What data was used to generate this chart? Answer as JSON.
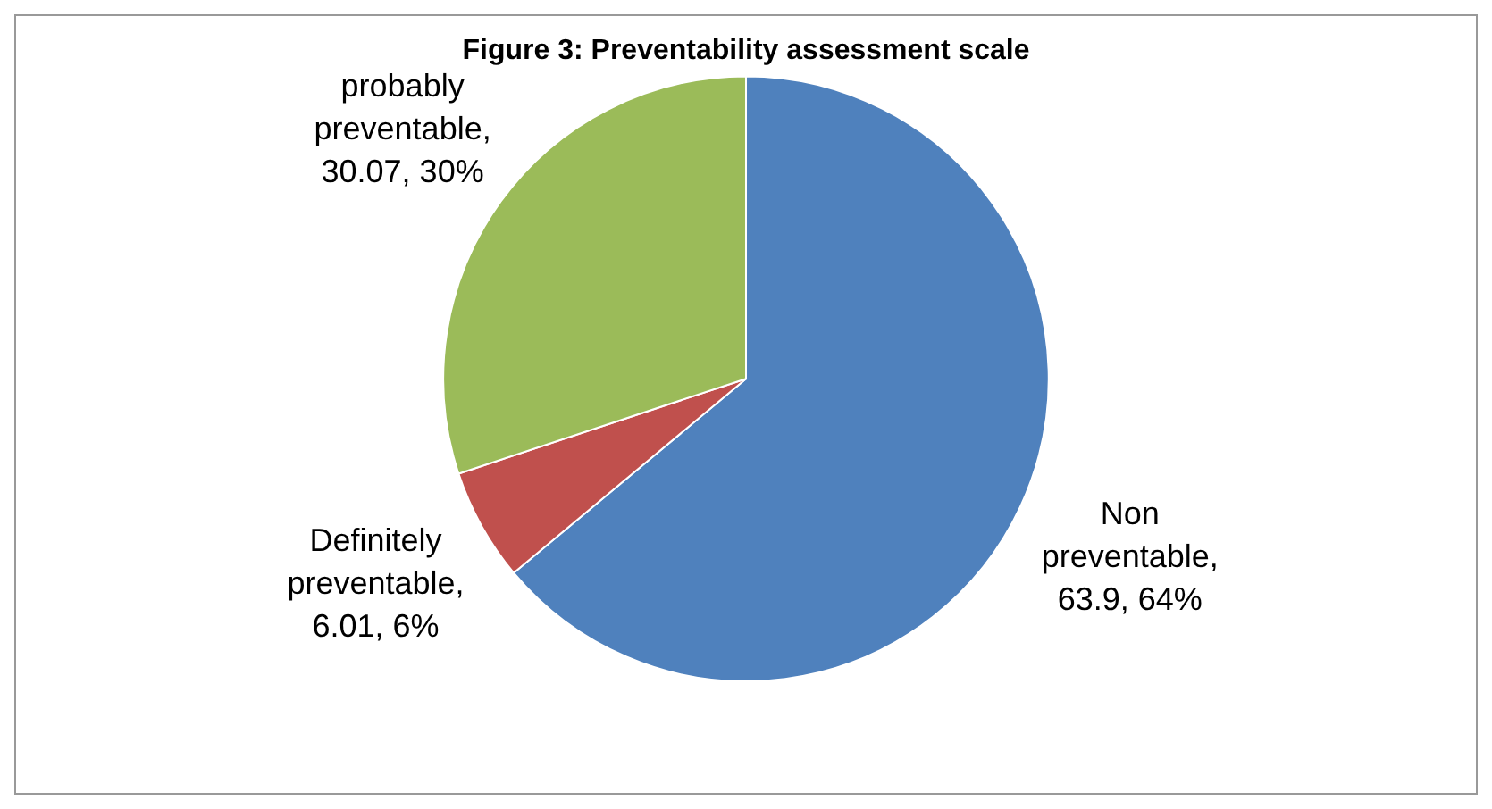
{
  "chart_data": {
    "type": "pie",
    "title": "Figure 3: Preventability assessment scale",
    "categories": [
      "Non preventable",
      "Definitely preventable",
      "probably preventable"
    ],
    "values": [
      63.9,
      6.01,
      30.07
    ],
    "value_labels": [
      ", 63.9, 64%",
      ", 6.01, 6%",
      ", 30.07, 30%"
    ],
    "colors": [
      "#4f81bd",
      "#c0504d",
      "#9bbb59"
    ],
    "legend": false
  }
}
